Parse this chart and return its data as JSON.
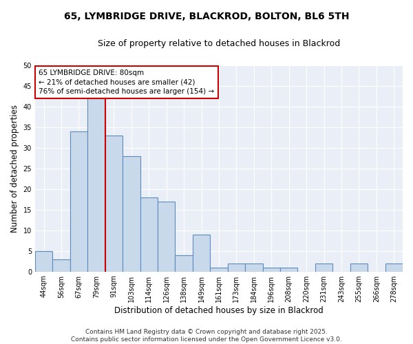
{
  "title1": "65, LYMBRIDGE DRIVE, BLACKROD, BOLTON, BL6 5TH",
  "title2": "Size of property relative to detached houses in Blackrod",
  "xlabel": "Distribution of detached houses by size in Blackrod",
  "ylabel": "Number of detached properties",
  "categories": [
    "44sqm",
    "56sqm",
    "67sqm",
    "79sqm",
    "91sqm",
    "103sqm",
    "114sqm",
    "126sqm",
    "138sqm",
    "149sqm",
    "161sqm",
    "173sqm",
    "184sqm",
    "196sqm",
    "208sqm",
    "220sqm",
    "231sqm",
    "243sqm",
    "255sqm",
    "266sqm",
    "278sqm"
  ],
  "values": [
    5,
    3,
    34,
    42,
    33,
    28,
    18,
    17,
    4,
    9,
    1,
    2,
    2,
    1,
    1,
    0,
    2,
    0,
    2,
    0,
    2
  ],
  "bar_color": "#c9d9ec",
  "bar_edge_color": "#5b8abf",
  "bar_edge_width": 0.8,
  "red_line_index": 3,
  "red_line_color": "#cc0000",
  "annotation_line1": "65 LYMBRIDGE DRIVE: 80sqm",
  "annotation_line2": "← 21% of detached houses are smaller (42)",
  "annotation_line3": "76% of semi-detached houses are larger (154) →",
  "annotation_box_color": "#ffffff",
  "annotation_box_edge": "#cc0000",
  "ylim": [
    0,
    50
  ],
  "yticks": [
    0,
    5,
    10,
    15,
    20,
    25,
    30,
    35,
    40,
    45,
    50
  ],
  "bg_color": "#eaeff7",
  "footer_line1": "Contains HM Land Registry data © Crown copyright and database right 2025.",
  "footer_line2": "Contains public sector information licensed under the Open Government Licence v3.0.",
  "title_fontsize": 10,
  "subtitle_fontsize": 9,
  "axis_label_fontsize": 8.5,
  "tick_fontsize": 7,
  "annotation_fontsize": 7.5,
  "footer_fontsize": 6.5
}
